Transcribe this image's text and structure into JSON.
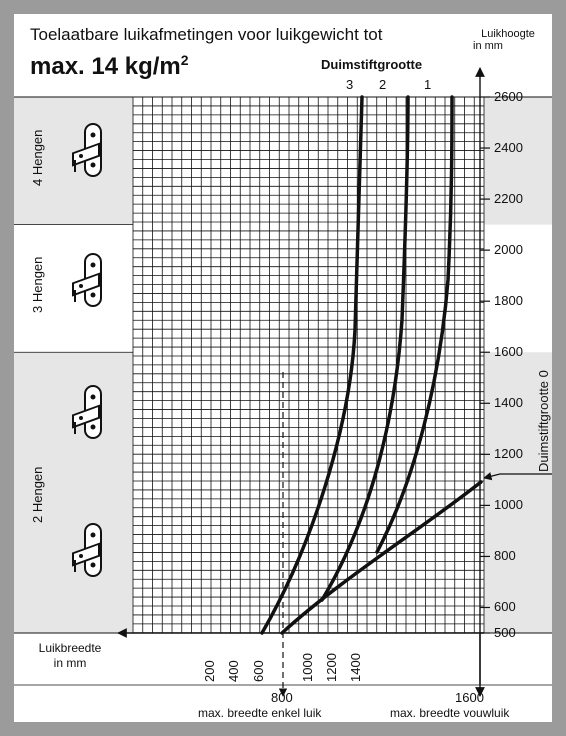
{
  "header": {
    "title_line1": "Toelaatbare luikafmetingen voor luikgewicht tot",
    "title_line2": "max. 14 kg/m",
    "title_sup": "2"
  },
  "axes": {
    "height_axis_label_line1": "Luikhoogte",
    "height_axis_label_line2": "in mm",
    "width_axis_label_line1": "Luikbreedte",
    "width_axis_label_line2": "in mm",
    "height_ticks": [
      "2600",
      "2400",
      "2200",
      "2000",
      "1800",
      "1600",
      "1400",
      "1200",
      "1000",
      "800",
      "600",
      "500"
    ],
    "width_ticks": [
      "200",
      "400",
      "600",
      "1000",
      "1200",
      "1400"
    ]
  },
  "legend": {
    "pin_size_title": "Duimstiftgrootte",
    "curve_labels": [
      "3",
      "2",
      "1"
    ],
    "pin_size_zero": "Duimstiftgrootte 0"
  },
  "zones": [
    {
      "label": "4 Hengen",
      "from_mm": 2100,
      "to_mm": 2600,
      "shaded": true
    },
    {
      "label": "3 Hengen",
      "from_mm": 1600,
      "to_mm": 2100,
      "shaded": false
    },
    {
      "label": "2 Hengen",
      "from_mm": 500,
      "to_mm": 1600,
      "shaded": true
    }
  ],
  "markers": {
    "single_value": "800",
    "single_label": "max. breedte enkel luik",
    "fold_value": "1600",
    "fold_label": "max. breedte vouwluik"
  },
  "colors": {
    "frame": "#9b9b9b",
    "shade": "#e6e6e6",
    "ink": "#111111"
  }
}
